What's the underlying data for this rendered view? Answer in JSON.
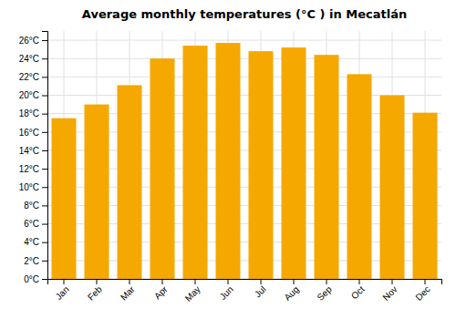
{
  "chart_data": {
    "type": "bar",
    "title": "Average monthly temperatures (°C ) in Mecatlán",
    "categories": [
      "Jan",
      "Feb",
      "Mar",
      "Apr",
      "May",
      "Jun",
      "Jul",
      "Aug",
      "Sep",
      "Oct",
      "Nov",
      "Dec"
    ],
    "values": [
      17.5,
      19.0,
      21.1,
      24.0,
      25.4,
      25.7,
      24.8,
      25.2,
      24.4,
      22.3,
      20.0,
      18.1
    ],
    "color": "#F5A800",
    "ylim": [
      0,
      27
    ],
    "yticks": [
      {
        "value": 0,
        "label": "0°C"
      },
      {
        "value": 2,
        "label": "2°C"
      },
      {
        "value": 4,
        "label": "4°C"
      },
      {
        "value": 6,
        "label": "6°C"
      },
      {
        "value": 8,
        "label": "8°C"
      },
      {
        "value": 10,
        "label": "10°C"
      },
      {
        "value": 12,
        "label": "12°C"
      },
      {
        "value": 14,
        "label": "14°C"
      },
      {
        "value": 16,
        "label": "16°C"
      },
      {
        "value": 18,
        "label": "18°C"
      },
      {
        "value": 20,
        "label": "20°C"
      },
      {
        "value": 22,
        "label": "22°C"
      },
      {
        "value": 24,
        "label": "24°C"
      },
      {
        "value": 26,
        "label": "26°C"
      }
    ],
    "grid": true
  }
}
